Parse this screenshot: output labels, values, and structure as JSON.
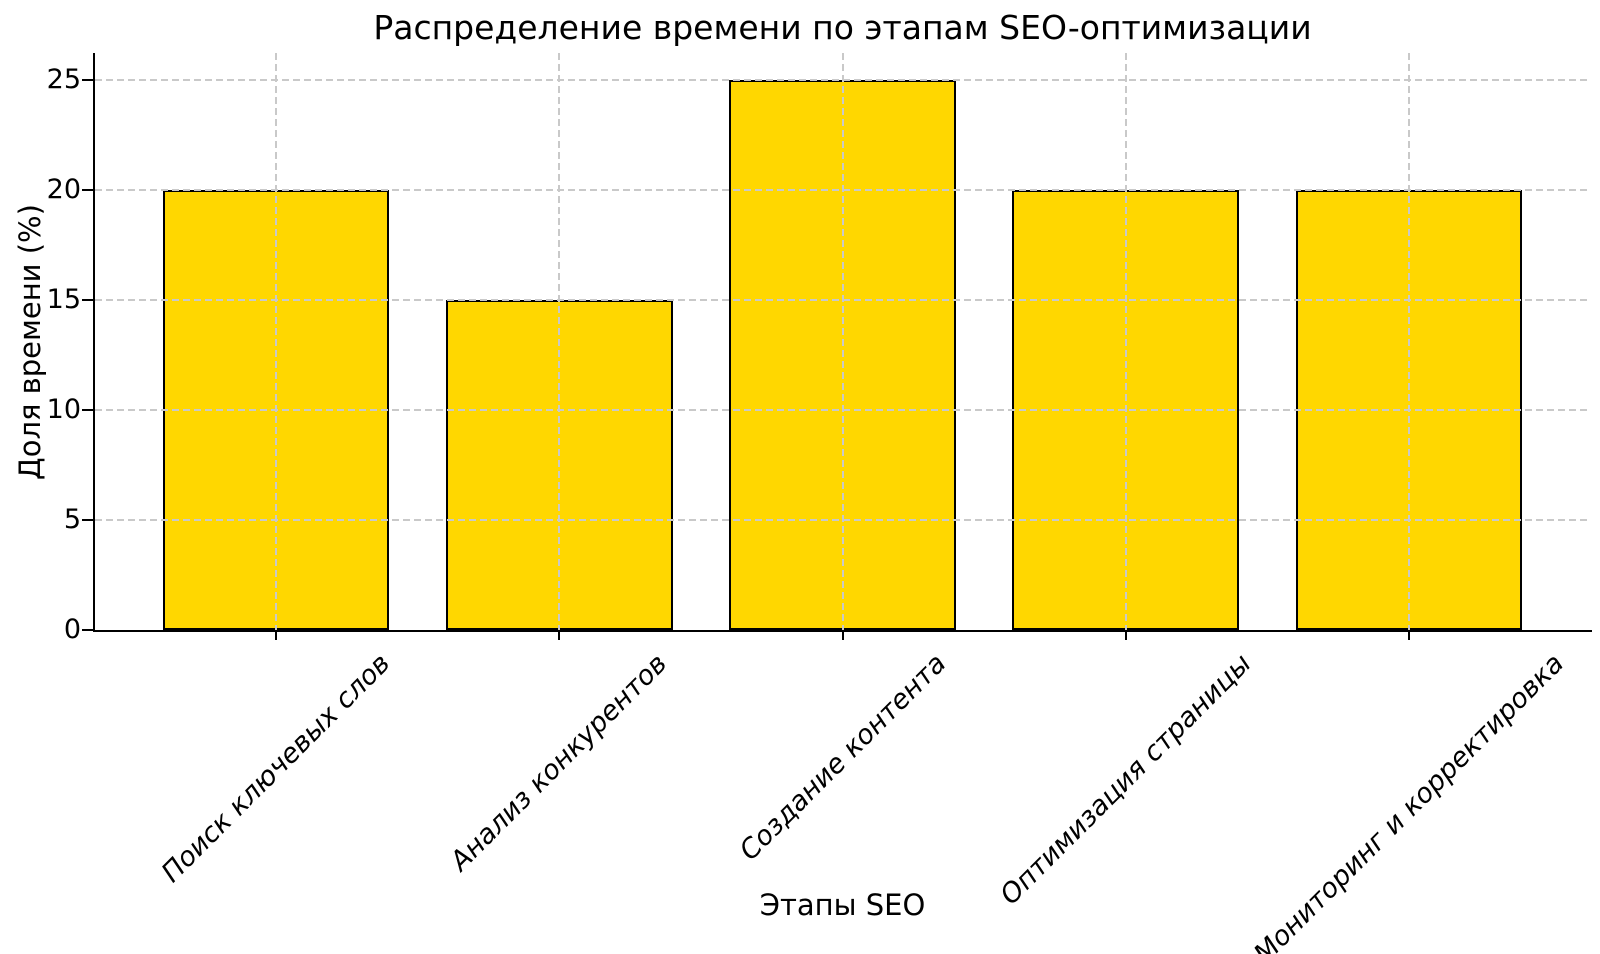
{
  "chart_data": {
    "type": "bar",
    "title": "Распределение времени по этапам SEO-оптимизации",
    "xlabel": "Этапы SEO",
    "ylabel": "Доля времени (%)",
    "categories": [
      "Поиск ключевых слов",
      "Анализ конкурентов",
      "Создание контента",
      "Оптимизация страницы",
      "Мониторинг и корректировка"
    ],
    "values": [
      20,
      15,
      25,
      20,
      20
    ],
    "yticks": [
      0,
      5,
      10,
      15,
      20,
      25
    ],
    "ylim": [
      0,
      26.25
    ],
    "grid": true,
    "grid_on_top_of_bars": true,
    "legend_position": "none",
    "bar_color": "#FFD700",
    "bar_edge_color": "#000000",
    "grid_color": "#c9c9c9",
    "grid_style": "dashed",
    "axis_color": "#000000",
    "text_color": "#000000"
  }
}
